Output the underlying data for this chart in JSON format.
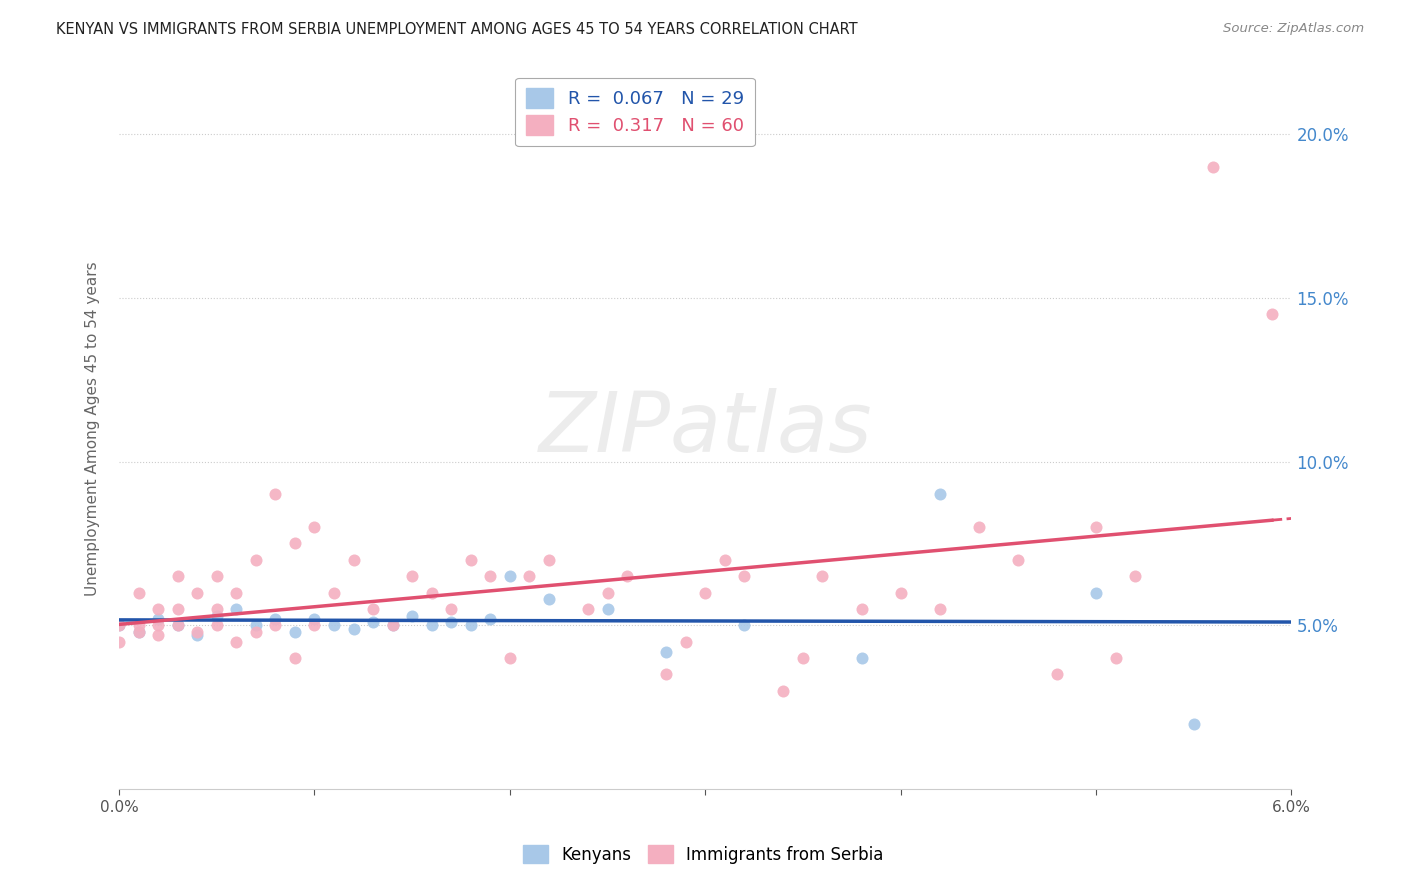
{
  "title": "KENYAN VS IMMIGRANTS FROM SERBIA UNEMPLOYMENT AMONG AGES 45 TO 54 YEARS CORRELATION CHART",
  "source": "Source: ZipAtlas.com",
  "ylabel": "Unemployment Among Ages 45 to 54 years",
  "xlim": [
    0.0,
    0.06
  ],
  "ylim": [
    0.0,
    0.22
  ],
  "kenyan_color": "#a8c8e8",
  "kenya_line_color": "#2255aa",
  "serbia_color": "#f4afc0",
  "serbia_line_color": "#e05070",
  "kenyan_R": 0.067,
  "kenyan_N": 29,
  "serbia_R": 0.317,
  "serbia_N": 60,
  "watermark_text": "ZIPatlas",
  "legend_kenyans": "Kenyans",
  "legend_serbia": "Immigrants from Serbia",
  "right_axis_color": "#4488cc",
  "kenyan_scatter_x": [
    0.0,
    0.001,
    0.002,
    0.003,
    0.004,
    0.005,
    0.006,
    0.007,
    0.008,
    0.009,
    0.01,
    0.011,
    0.012,
    0.013,
    0.014,
    0.015,
    0.016,
    0.017,
    0.018,
    0.019,
    0.02,
    0.022,
    0.025,
    0.028,
    0.032,
    0.038,
    0.042,
    0.05,
    0.055
  ],
  "kenyan_scatter_y": [
    0.05,
    0.048,
    0.052,
    0.05,
    0.047,
    0.053,
    0.055,
    0.05,
    0.052,
    0.048,
    0.052,
    0.05,
    0.049,
    0.051,
    0.05,
    0.053,
    0.05,
    0.051,
    0.05,
    0.052,
    0.065,
    0.058,
    0.055,
    0.042,
    0.05,
    0.04,
    0.09,
    0.06,
    0.02
  ],
  "serbia_scatter_x": [
    0.0,
    0.0,
    0.001,
    0.001,
    0.001,
    0.002,
    0.002,
    0.002,
    0.003,
    0.003,
    0.003,
    0.004,
    0.004,
    0.005,
    0.005,
    0.005,
    0.006,
    0.006,
    0.007,
    0.007,
    0.008,
    0.008,
    0.009,
    0.009,
    0.01,
    0.01,
    0.011,
    0.012,
    0.013,
    0.014,
    0.015,
    0.016,
    0.017,
    0.018,
    0.019,
    0.02,
    0.021,
    0.022,
    0.024,
    0.025,
    0.026,
    0.028,
    0.029,
    0.03,
    0.031,
    0.032,
    0.034,
    0.035,
    0.036,
    0.038,
    0.04,
    0.042,
    0.044,
    0.046,
    0.048,
    0.05,
    0.051,
    0.052,
    0.056,
    0.059
  ],
  "serbia_scatter_y": [
    0.05,
    0.045,
    0.048,
    0.05,
    0.06,
    0.047,
    0.05,
    0.055,
    0.05,
    0.055,
    0.065,
    0.048,
    0.06,
    0.05,
    0.055,
    0.065,
    0.045,
    0.06,
    0.048,
    0.07,
    0.05,
    0.09,
    0.04,
    0.075,
    0.05,
    0.08,
    0.06,
    0.07,
    0.055,
    0.05,
    0.065,
    0.06,
    0.055,
    0.07,
    0.065,
    0.04,
    0.065,
    0.07,
    0.055,
    0.06,
    0.065,
    0.035,
    0.045,
    0.06,
    0.07,
    0.065,
    0.03,
    0.04,
    0.065,
    0.055,
    0.06,
    0.055,
    0.08,
    0.07,
    0.035,
    0.08,
    0.04,
    0.065,
    0.19,
    0.145
  ]
}
